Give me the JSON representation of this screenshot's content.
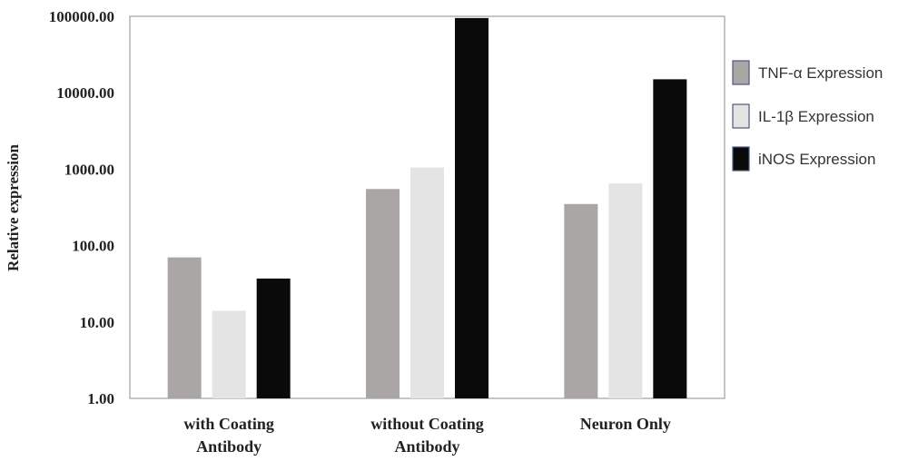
{
  "chart_data": {
    "type": "bar",
    "title": "",
    "xlabel": "",
    "ylabel": "Relative expression",
    "yscale": "log",
    "ylim": [
      1,
      100000
    ],
    "y_ticks": [
      "1.00",
      "10.00",
      "100.00",
      "1000.00",
      "10000.00",
      "100000.00"
    ],
    "categories": [
      [
        "with Coating",
        "Antibody"
      ],
      [
        "without Coating",
        "Antibody"
      ],
      [
        "Neuron Only"
      ]
    ],
    "series": [
      {
        "name": "TNF-α Expression",
        "color": "#aaa6a6",
        "values": [
          70,
          550,
          350
        ]
      },
      {
        "name": "IL-1β Expression",
        "color": "#e4e4e4",
        "values": [
          14,
          1050,
          650
        ]
      },
      {
        "name": "iNOS Expression",
        "color": "#0a0a0a",
        "values": [
          37,
          95000,
          15000
        ]
      }
    ],
    "legend_position": "right",
    "grid": false
  }
}
